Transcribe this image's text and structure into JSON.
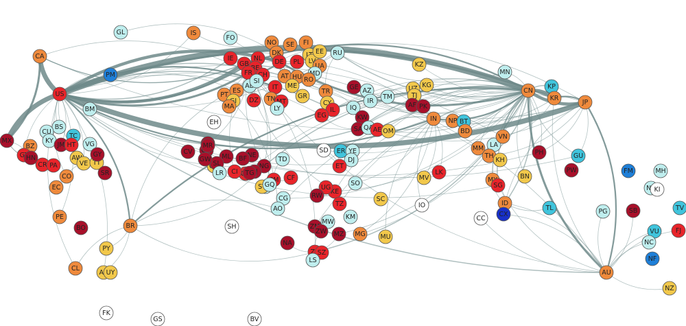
{
  "palette": {
    "white": "#ffffff",
    "light_cyan": "#bfeeee",
    "cyan": "#40c4dc",
    "blue": "#1e7fd8",
    "dark_blue": "#1830c8",
    "yellow": "#f2c84b",
    "orange": "#ef8a3c",
    "red": "#e8242a",
    "dark_red": "#a8102a",
    "edge": "#6e8a8a"
  },
  "nodes": [
    {
      "code": "CA",
      "color": "orange"
    },
    {
      "code": "US",
      "color": "red"
    },
    {
      "code": "MX",
      "color": "dark_red"
    },
    {
      "code": "PM",
      "color": "blue"
    },
    {
      "code": "GL",
      "color": "light_cyan"
    },
    {
      "code": "BM",
      "color": "light_cyan"
    },
    {
      "code": "EH",
      "color": "white"
    },
    {
      "code": "BS",
      "color": "light_cyan"
    },
    {
      "code": "CU",
      "color": "light_cyan"
    },
    {
      "code": "KY",
      "color": "light_cyan"
    },
    {
      "code": "TC",
      "color": "cyan"
    },
    {
      "code": "JM",
      "color": "dark_red"
    },
    {
      "code": "HT",
      "color": "red"
    },
    {
      "code": "VG",
      "color": "light_cyan"
    },
    {
      "code": "BZ",
      "color": "orange"
    },
    {
      "code": "GT",
      "color": "red"
    },
    {
      "code": "HN",
      "color": "dark_red"
    },
    {
      "code": "CR",
      "color": "red"
    },
    {
      "code": "PA",
      "color": "red"
    },
    {
      "code": "AW",
      "color": "yellow"
    },
    {
      "code": "VE",
      "color": "yellow"
    },
    {
      "code": "TT",
      "color": "yellow"
    },
    {
      "code": "GY",
      "color": "dark_red"
    },
    {
      "code": "SR",
      "color": "dark_red"
    },
    {
      "code": "CO",
      "color": "orange"
    },
    {
      "code": "EC",
      "color": "orange"
    },
    {
      "code": "PE",
      "color": "orange"
    },
    {
      "code": "BO",
      "color": "dark_red"
    },
    {
      "code": "BR",
      "color": "orange"
    },
    {
      "code": "PY",
      "color": "yellow"
    },
    {
      "code": "CL",
      "color": "orange"
    },
    {
      "code": "AR",
      "color": "yellow"
    },
    {
      "code": "UY",
      "color": "yellow"
    },
    {
      "code": "FK",
      "color": "white"
    },
    {
      "code": "GS",
      "color": "white"
    },
    {
      "code": "BV",
      "color": "white"
    },
    {
      "code": "SH",
      "color": "white"
    },
    {
      "code": "IS",
      "color": "orange"
    },
    {
      "code": "FO",
      "color": "light_cyan"
    },
    {
      "code": "NO",
      "color": "orange"
    },
    {
      "code": "SE",
      "color": "orange"
    },
    {
      "code": "FI",
      "color": "orange"
    },
    {
      "code": "DK",
      "color": "orange"
    },
    {
      "code": "IE",
      "color": "red"
    },
    {
      "code": "GB",
      "color": "red"
    },
    {
      "code": "NL",
      "color": "red"
    },
    {
      "code": "BE",
      "color": "red"
    },
    {
      "code": "DE",
      "color": "red"
    },
    {
      "code": "PL",
      "color": "red"
    },
    {
      "code": "LT",
      "color": "yellow"
    },
    {
      "code": "LV",
      "color": "yellow"
    },
    {
      "code": "EE",
      "color": "yellow"
    },
    {
      "code": "RU",
      "color": "light_cyan"
    },
    {
      "code": "UA",
      "color": "orange"
    },
    {
      "code": "MD",
      "color": "light_cyan"
    },
    {
      "code": "FR",
      "color": "red"
    },
    {
      "code": "CH",
      "color": "red"
    },
    {
      "code": "IT",
      "color": "red"
    },
    {
      "code": "AT",
      "color": "orange"
    },
    {
      "code": "HU",
      "color": "orange"
    },
    {
      "code": "RO",
      "color": "orange"
    },
    {
      "code": "ME",
      "color": "yellow"
    },
    {
      "code": "GR",
      "color": "yellow"
    },
    {
      "code": "AD",
      "color": "light_cyan"
    },
    {
      "code": "SI",
      "color": "light_cyan"
    },
    {
      "code": "PT",
      "color": "orange"
    },
    {
      "code": "ES",
      "color": "orange"
    },
    {
      "code": "GI",
      "color": "yellow"
    },
    {
      "code": "MA",
      "color": "orange"
    },
    {
      "code": "DZ",
      "color": "red"
    },
    {
      "code": "TN",
      "color": "orange"
    },
    {
      "code": "MT",
      "color": "red"
    },
    {
      "code": "LY",
      "color": "light_cyan"
    },
    {
      "code": "TR",
      "color": "orange"
    },
    {
      "code": "CY",
      "color": "yellow"
    },
    {
      "code": "IL",
      "color": "red"
    },
    {
      "code": "EG",
      "color": "red"
    },
    {
      "code": "GE",
      "color": "dark_red"
    },
    {
      "code": "AZ",
      "color": "light_cyan"
    },
    {
      "code": "IR",
      "color": "light_cyan"
    },
    {
      "code": "TM",
      "color": "light_cyan"
    },
    {
      "code": "IQ",
      "color": "light_cyan"
    },
    {
      "code": "KW",
      "color": "dark_red"
    },
    {
      "code": "SA",
      "color": "dark_red"
    },
    {
      "code": "QA",
      "color": "light_cyan"
    },
    {
      "code": "AE",
      "color": "red"
    },
    {
      "code": "OM",
      "color": "yellow"
    },
    {
      "code": "KZ",
      "color": "yellow"
    },
    {
      "code": "UZ",
      "color": "yellow"
    },
    {
      "code": "KG",
      "color": "yellow"
    },
    {
      "code": "TJ",
      "color": "yellow"
    },
    {
      "code": "AF",
      "color": "dark_red"
    },
    {
      "code": "PK",
      "color": "dark_red"
    },
    {
      "code": "IN",
      "color": "orange"
    },
    {
      "code": "NP",
      "color": "orange"
    },
    {
      "code": "BT",
      "color": "cyan"
    },
    {
      "code": "BD",
      "color": "orange"
    },
    {
      "code": "MN",
      "color": "light_cyan"
    },
    {
      "code": "CN",
      "color": "orange"
    },
    {
      "code": "KP",
      "color": "cyan"
    },
    {
      "code": "KR",
      "color": "orange"
    },
    {
      "code": "JP",
      "color": "orange"
    },
    {
      "code": "MM",
      "color": "orange"
    },
    {
      "code": "LA",
      "color": "light_cyan"
    },
    {
      "code": "VN",
      "color": "orange"
    },
    {
      "code": "TH",
      "color": "orange"
    },
    {
      "code": "KH",
      "color": "yellow"
    },
    {
      "code": "PH",
      "color": "dark_red"
    },
    {
      "code": "GU",
      "color": "cyan"
    },
    {
      "code": "PW",
      "color": "dark_red"
    },
    {
      "code": "MY",
      "color": "orange"
    },
    {
      "code": "SG",
      "color": "red"
    },
    {
      "code": "BN",
      "color": "yellow"
    },
    {
      "code": "ID",
      "color": "orange"
    },
    {
      "code": "TL",
      "color": "cyan"
    },
    {
      "code": "PG",
      "color": "light_cyan"
    },
    {
      "code": "AU",
      "color": "orange"
    },
    {
      "code": "NZ",
      "color": "yellow"
    },
    {
      "code": "FM",
      "color": "blue"
    },
    {
      "code": "MH",
      "color": "light_cyan"
    },
    {
      "code": "NR",
      "color": "light_cyan"
    },
    {
      "code": "KI",
      "color": "white"
    },
    {
      "code": "TV",
      "color": "cyan"
    },
    {
      "code": "SB",
      "color": "dark_red"
    },
    {
      "code": "VU",
      "color": "cyan"
    },
    {
      "code": "FJ",
      "color": "red"
    },
    {
      "code": "NC",
      "color": "light_cyan"
    },
    {
      "code": "NF",
      "color": "blue"
    },
    {
      "code": "CX",
      "color": "dark_blue"
    },
    {
      "code": "CC",
      "color": "white"
    },
    {
      "code": "IO",
      "color": "white"
    },
    {
      "code": "LK",
      "color": "red"
    },
    {
      "code": "MV",
      "color": "yellow"
    },
    {
      "code": "SD",
      "color": "white"
    },
    {
      "code": "ER",
      "color": "cyan"
    },
    {
      "code": "YE",
      "color": "light_cyan"
    },
    {
      "code": "DJ",
      "color": "light_cyan"
    },
    {
      "code": "ET",
      "color": "red"
    },
    {
      "code": "TD",
      "color": "light_cyan"
    },
    {
      "code": "SO",
      "color": "light_cyan"
    },
    {
      "code": "KE",
      "color": "red"
    },
    {
      "code": "UG",
      "color": "red"
    },
    {
      "code": "RW",
      "color": "dark_red"
    },
    {
      "code": "TZ",
      "color": "red"
    },
    {
      "code": "SC",
      "color": "yellow"
    },
    {
      "code": "MW",
      "color": "light_cyan"
    },
    {
      "code": "ZM",
      "color": "dark_red"
    },
    {
      "code": "ZW",
      "color": "dark_red"
    },
    {
      "code": "MZ",
      "color": "dark_red"
    },
    {
      "code": "MG",
      "color": "orange"
    },
    {
      "code": "MU",
      "color": "yellow"
    },
    {
      "code": "ZA",
      "color": "red"
    },
    {
      "code": "SZ",
      "color": "red"
    },
    {
      "code": "LS",
      "color": "light_cyan"
    },
    {
      "code": "NA",
      "color": "dark_red"
    },
    {
      "code": "KM",
      "color": "light_cyan"
    },
    {
      "code": "CG",
      "color": "light_cyan"
    },
    {
      "code": "AO",
      "color": "light_cyan"
    },
    {
      "code": "CM",
      "color": "red"
    },
    {
      "code": "CF",
      "color": "red"
    },
    {
      "code": "GA",
      "color": "light_cyan"
    },
    {
      "code": "ST",
      "color": "yellow"
    },
    {
      "code": "GQ",
      "color": "light_cyan"
    },
    {
      "code": "NG",
      "color": "dark_red"
    },
    {
      "code": "NE",
      "color": "dark_red"
    },
    {
      "code": "ML",
      "color": "dark_red"
    },
    {
      "code": "BF",
      "color": "dark_red"
    },
    {
      "code": "GH",
      "color": "red"
    },
    {
      "code": "CI",
      "color": "red"
    },
    {
      "code": "SN",
      "color": "dark_red"
    },
    {
      "code": "GM",
      "color": "dark_red"
    },
    {
      "code": "GN",
      "color": "yellow"
    },
    {
      "code": "SL",
      "color": "dark_red"
    },
    {
      "code": "LR",
      "color": "light_cyan"
    },
    {
      "code": "MR",
      "color": "dark_red"
    },
    {
      "code": "GW",
      "color": "dark_red"
    },
    {
      "code": "BJ",
      "color": "dark_red"
    },
    {
      "code": "TG",
      "color": "dark_red"
    },
    {
      "code": "CV",
      "color": "dark_red"
    }
  ],
  "edges": [
    [
      "US",
      "CN",
      12
    ],
    [
      "US",
      "JP",
      10
    ],
    [
      "US",
      "CA",
      9
    ],
    [
      "US",
      "MX",
      9
    ],
    [
      "CA",
      "MX",
      4
    ],
    [
      "US",
      "GB",
      6
    ],
    [
      "US",
      "DE",
      6
    ],
    [
      "US",
      "FR",
      4
    ],
    [
      "US",
      "KR",
      4
    ],
    [
      "US",
      "IN",
      3
    ],
    [
      "US",
      "IT",
      3
    ],
    [
      "US",
      "NL",
      3
    ],
    [
      "US",
      "BR",
      3
    ],
    [
      "US",
      "AU",
      2
    ],
    [
      "US",
      "TR",
      2
    ],
    [
      "CN",
      "JP",
      6
    ],
    [
      "CN",
      "KR",
      6
    ],
    [
      "CN",
      "AU",
      4
    ],
    [
      "CN",
      "DE",
      4
    ],
    [
      "CN",
      "GB",
      3
    ],
    [
      "CN",
      "IN",
      3
    ],
    [
      "CN",
      "BR",
      3
    ],
    [
      "CN",
      "RU",
      2
    ],
    [
      "CN",
      "VN",
      2
    ],
    [
      "CN",
      "TH",
      2
    ],
    [
      "CN",
      "MY",
      2
    ],
    [
      "CN",
      "ID",
      2
    ],
    [
      "CN",
      "SG",
      2
    ],
    [
      "CN",
      "KP",
      2
    ],
    [
      "CN",
      "NG",
      2
    ],
    [
      "CN",
      "ZA",
      2
    ],
    [
      "CN",
      "SA",
      2
    ],
    [
      "CN",
      "IR",
      1
    ],
    [
      "CN",
      "MM",
      1
    ],
    [
      "CN",
      "BD",
      1
    ],
    [
      "CN",
      "PK",
      1
    ],
    [
      "CN",
      "KZ",
      1
    ],
    [
      "CN",
      "MN",
      1
    ],
    [
      "CN",
      "PH",
      1
    ],
    [
      "CN",
      "GH",
      1
    ],
    [
      "JP",
      "AU",
      3
    ],
    [
      "JP",
      "KR",
      3
    ],
    [
      "JP",
      "TH",
      1
    ],
    [
      "JP",
      "ID",
      1
    ],
    [
      "JP",
      "PH",
      1
    ],
    [
      "JP",
      "GB",
      1
    ],
    [
      "JP",
      "DE",
      1
    ],
    [
      "KR",
      "AU",
      1
    ],
    [
      "KR",
      "VN",
      1
    ],
    [
      "AU",
      "NZ",
      1
    ],
    [
      "AU",
      "PG",
      1
    ],
    [
      "AU",
      "ID",
      1
    ],
    [
      "AU",
      "SG",
      1
    ],
    [
      "AU",
      "GB",
      1
    ],
    [
      "AU",
      "FJ",
      1
    ],
    [
      "CA",
      "GB",
      2
    ],
    [
      "CA",
      "FR",
      1
    ],
    [
      "CA",
      "JP",
      1
    ],
    [
      "US",
      "BM",
      1
    ],
    [
      "US",
      "BS",
      1
    ],
    [
      "US",
      "JM",
      1
    ],
    [
      "US",
      "HT",
      1
    ],
    [
      "US",
      "VE",
      1
    ],
    [
      "US",
      "CO",
      1
    ],
    [
      "US",
      "PE",
      1
    ],
    [
      "US",
      "GT",
      1
    ],
    [
      "US",
      "IL",
      2
    ],
    [
      "US",
      "SA",
      2
    ],
    [
      "US",
      "EG",
      1
    ],
    [
      "US",
      "PH",
      1
    ],
    [
      "US",
      "VN",
      1
    ],
    [
      "US",
      "SG",
      1
    ],
    [
      "US",
      "TH",
      1
    ],
    [
      "US",
      "RU",
      1
    ],
    [
      "US",
      "PM",
      1
    ],
    [
      "US",
      "IE",
      2
    ],
    [
      "US",
      "ES",
      1
    ],
    [
      "US",
      "NG",
      1
    ],
    [
      "GB",
      "DE",
      3
    ],
    [
      "GB",
      "FR",
      3
    ],
    [
      "GB",
      "IN",
      1
    ],
    [
      "GB",
      "IE",
      2
    ],
    [
      "DE",
      "FR",
      3
    ],
    [
      "DE",
      "PL",
      2
    ],
    [
      "DE",
      "IT",
      2
    ],
    [
      "DE",
      "NL",
      2
    ],
    [
      "DE",
      "RU",
      1
    ],
    [
      "DE",
      "TR",
      1
    ],
    [
      "FR",
      "ES",
      2
    ],
    [
      "FR",
      "IT",
      2
    ],
    [
      "FR",
      "DZ",
      1
    ],
    [
      "FR",
      "MA",
      1
    ],
    [
      "FR",
      "SN",
      1
    ],
    [
      "FR",
      "CI",
      1
    ],
    [
      "ES",
      "PT",
      1
    ],
    [
      "IT",
      "TN",
      1
    ],
    [
      "IT",
      "LY",
      1
    ],
    [
      "RU",
      "UA",
      1
    ],
    [
      "RU",
      "KZ",
      1
    ],
    [
      "RU",
      "TR",
      1
    ],
    [
      "TR",
      "IQ",
      1
    ],
    [
      "IN",
      "AE",
      2
    ],
    [
      "IN",
      "SA",
      1
    ],
    [
      "IN",
      "PK",
      1
    ],
    [
      "IN",
      "BD",
      1
    ],
    [
      "IN",
      "NP",
      1
    ],
    [
      "IN",
      "LK",
      1
    ],
    [
      "IN",
      "AF",
      1
    ],
    [
      "SA",
      "EG",
      1
    ],
    [
      "AE",
      "OM",
      1
    ],
    [
      "BR",
      "AR",
      1
    ],
    [
      "BR",
      "CL",
      1
    ],
    [
      "BR",
      "PY",
      1
    ],
    [
      "BR",
      "ZA",
      1
    ],
    [
      "BR",
      "AO",
      1
    ],
    [
      "BR",
      "NG",
      1
    ],
    [
      "ZA",
      "NA",
      1
    ],
    [
      "ZA",
      "MZ",
      1
    ],
    [
      "ZA",
      "ZW",
      1
    ],
    [
      "KE",
      "UG",
      1
    ],
    [
      "KE",
      "TZ",
      1
    ],
    [
      "ET",
      "DJ",
      1
    ],
    [
      "ET",
      "ER",
      1
    ],
    [
      "ET",
      "SD",
      1
    ],
    [
      "NG",
      "GH",
      1
    ],
    [
      "CI",
      "GH",
      1
    ],
    [
      "SN",
      "ML",
      1
    ],
    [
      "CM",
      "CF",
      1
    ],
    [
      "CM",
      "TD",
      1
    ],
    [
      "TH",
      "MM",
      1
    ],
    [
      "TH",
      "LA",
      1
    ],
    [
      "TH",
      "KH",
      1
    ],
    [
      "MY",
      "SG",
      1
    ],
    [
      "MY",
      "ID",
      1
    ],
    [
      "SG",
      "ID",
      1
    ],
    [
      "ID",
      "TL",
      1
    ],
    [
      "ID",
      "CX",
      1
    ],
    [
      "AU",
      "CX",
      1
    ],
    [
      "AU",
      "CC",
      1
    ],
    [
      "IN",
      "IO",
      1
    ],
    [
      "IN",
      "MV",
      1
    ],
    [
      "IN",
      "MU",
      1
    ],
    [
      "IN",
      "MG",
      1
    ],
    [
      "IN",
      "KE",
      1
    ],
    [
      "IN",
      "SO",
      1
    ],
    [
      "CN",
      "AO",
      1
    ],
    [
      "CN",
      "SD",
      1
    ],
    [
      "CN",
      "ET",
      1
    ],
    [
      "CN",
      "KE",
      1
    ],
    [
      "CN",
      "ZM",
      1
    ],
    [
      "CN",
      "CG",
      1
    ],
    [
      "CN",
      "GU",
      1
    ],
    [
      "JP",
      "GU",
      1
    ],
    [
      "US",
      "GU",
      1
    ],
    [
      "AU",
      "VU",
      1
    ],
    [
      "AU",
      "SB",
      1
    ],
    [
      "AU",
      "NC",
      1
    ],
    [
      "CN",
      "BN",
      1
    ],
    [
      "CN",
      "ML",
      1
    ],
    [
      "CN",
      "NE",
      1
    ],
    [
      "FR",
      "GA",
      1
    ],
    [
      "FR",
      "CM",
      1
    ],
    [
      "PT",
      "AO",
      1
    ],
    [
      "PT",
      "BR",
      1
    ],
    [
      "GB",
      "ZA",
      1
    ],
    [
      "GB",
      "KE",
      1
    ],
    [
      "GB",
      "NG",
      1
    ],
    [
      "GB",
      "AU",
      1
    ],
    [
      "GB",
      "CA",
      1
    ],
    [
      "US",
      "CL",
      1
    ],
    [
      "US",
      "AR",
      1
    ],
    [
      "MX",
      "GT",
      1
    ],
    [
      "MX",
      "HN",
      1
    ],
    [
      "MX",
      "CR",
      1
    ],
    [
      "CO",
      "VE",
      1
    ],
    [
      "CN",
      "EG",
      1
    ],
    [
      "CN",
      "TR",
      1
    ],
    [
      "CN",
      "IQ",
      1
    ],
    [
      "CN",
      "AE",
      1
    ],
    [
      "CN",
      "OM",
      1
    ],
    [
      "CN",
      "MG",
      1
    ],
    [
      "CN",
      "TZ",
      1
    ],
    [
      "CN",
      "MZ",
      1
    ],
    [
      "JP",
      "SA",
      1
    ],
    [
      "JP",
      "AE",
      1
    ],
    [
      "KR",
      "SA",
      1
    ],
    [
      "KR",
      "IN",
      1
    ],
    [
      "IS",
      "NO",
      1
    ],
    [
      "IS",
      "US",
      1
    ],
    [
      "FO",
      "DK",
      1
    ],
    [
      "GL",
      "DK",
      1
    ],
    [
      "RU",
      "MN",
      1
    ],
    [
      "CN",
      "KG",
      1
    ],
    [
      "CN",
      "TJ",
      1
    ],
    [
      "CN",
      "UZ",
      1
    ]
  ]
}
